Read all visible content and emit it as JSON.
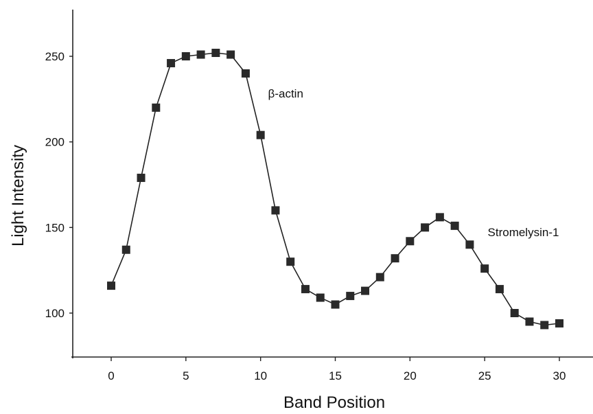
{
  "chart_data": {
    "type": "line",
    "title": "",
    "xlabel": "Band Position",
    "ylabel": "Light Intensity",
    "xlim": [
      -2.5,
      32
    ],
    "ylim": [
      75,
      275
    ],
    "x_ticks": [
      0,
      5,
      10,
      15,
      20,
      25,
      30
    ],
    "y_ticks": [
      100,
      150,
      200,
      250
    ],
    "grid": false,
    "marker": "square",
    "series": [
      {
        "x": [
          0,
          1,
          2,
          3,
          4,
          5,
          6,
          7,
          8,
          9,
          10,
          11,
          12,
          13,
          14,
          15,
          16,
          17,
          18,
          19,
          20,
          21,
          22,
          23,
          24,
          25,
          26,
          27,
          28,
          29,
          30
        ],
        "values": [
          116,
          137,
          179,
          220,
          246,
          250,
          251,
          252,
          251,
          240,
          204,
          160,
          130,
          114,
          109,
          105,
          110,
          113,
          121,
          132,
          142,
          150,
          156,
          151,
          140,
          126,
          114,
          100,
          95,
          93,
          94
        ]
      }
    ],
    "annotations": [
      {
        "text": "β-actin",
        "x": 10.5,
        "y": 226
      },
      {
        "text": "Stromelysin-1",
        "x": 25.2,
        "y": 145
      }
    ],
    "colors": {
      "line": "#222222",
      "marker": "#2a2a2a",
      "axis": "#222222"
    }
  }
}
